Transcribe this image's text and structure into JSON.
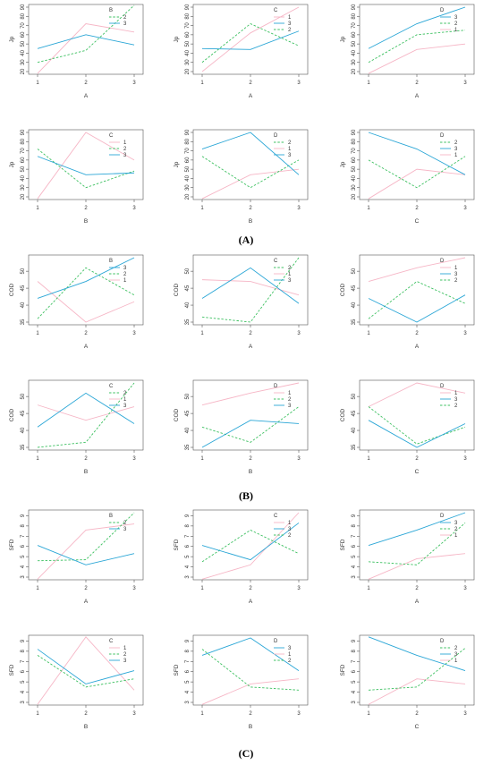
{
  "colors": {
    "level1": "#f6b6c6",
    "level2": "#3cc060",
    "level3": "#2aa6d6"
  },
  "panel_labels": [
    "(A)",
    "(B)",
    "(C)"
  ],
  "chart_data": [
    {
      "group": "A",
      "type": "line",
      "xlabel": "A",
      "ylabel": "Jp",
      "ylim": [
        20,
        90
      ],
      "yticks": [
        "20",
        "30",
        "40",
        "50",
        "60",
        "70",
        "80",
        "90"
      ],
      "xticks": [
        "1",
        "2",
        "3"
      ],
      "legend_title": "B",
      "legend_items": [
        "2",
        "3"
      ],
      "series": [
        {
          "level": "1",
          "values": [
            18,
            72,
            63
          ]
        },
        {
          "level": "2",
          "values": [
            30,
            43,
            92
          ]
        },
        {
          "level": "3",
          "values": [
            45,
            60,
            49
          ]
        }
      ]
    },
    {
      "group": "A",
      "type": "line",
      "xlabel": "A",
      "ylabel": "Jp",
      "ylim": [
        20,
        90
      ],
      "yticks": [
        "20",
        "30",
        "40",
        "50",
        "60",
        "70",
        "80",
        "90"
      ],
      "xticks": [
        "1",
        "2",
        "3"
      ],
      "legend_title": "C",
      "legend_items": [
        "1",
        "3",
        "2"
      ],
      "series": [
        {
          "level": "1",
          "values": [
            20,
            62,
            90
          ]
        },
        {
          "level": "2",
          "values": [
            30,
            72,
            48
          ]
        },
        {
          "level": "3",
          "values": [
            45,
            44,
            64
          ]
        }
      ]
    },
    {
      "group": "A",
      "type": "line",
      "xlabel": "A",
      "ylabel": "Jp",
      "ylim": [
        20,
        90
      ],
      "yticks": [
        "20",
        "30",
        "40",
        "50",
        "60",
        "70",
        "80",
        "90"
      ],
      "xticks": [
        "1",
        "2",
        "3"
      ],
      "legend_title": "D",
      "legend_items": [
        "3",
        "2",
        "1"
      ],
      "series": [
        {
          "level": "1",
          "values": [
            18,
            44,
            50
          ]
        },
        {
          "level": "2",
          "values": [
            30,
            60,
            65
          ]
        },
        {
          "level": "3",
          "values": [
            45,
            72,
            90
          ]
        }
      ]
    },
    {
      "group": "A",
      "type": "line",
      "xlabel": "B",
      "ylabel": "Jp",
      "ylim": [
        20,
        90
      ],
      "yticks": [
        "20",
        "30",
        "40",
        "50",
        "60",
        "70",
        "80",
        "90"
      ],
      "xticks": [
        "1",
        "2",
        "3"
      ],
      "legend_title": "C",
      "legend_items": [
        "1",
        "2",
        "3"
      ],
      "series": [
        {
          "level": "1",
          "values": [
            18,
            90,
            60
          ]
        },
        {
          "level": "2",
          "values": [
            72,
            30,
            48
          ]
        },
        {
          "level": "3",
          "values": [
            64,
            44,
            46
          ]
        }
      ]
    },
    {
      "group": "A",
      "type": "line",
      "xlabel": "B",
      "ylabel": "Jp",
      "ylim": [
        20,
        90
      ],
      "yticks": [
        "20",
        "30",
        "40",
        "50",
        "60",
        "70",
        "80",
        "90"
      ],
      "xticks": [
        "1",
        "2",
        "3"
      ],
      "legend_title": "D",
      "legend_items": [
        "2",
        "1",
        "3"
      ],
      "series": [
        {
          "level": "1",
          "values": [
            18,
            44,
            50
          ]
        },
        {
          "level": "2",
          "values": [
            64,
            30,
            60
          ]
        },
        {
          "level": "3",
          "values": [
            72,
            90,
            44
          ]
        }
      ]
    },
    {
      "group": "A",
      "type": "line",
      "xlabel": "C",
      "ylabel": "Jp",
      "ylim": [
        20,
        90
      ],
      "yticks": [
        "20",
        "30",
        "40",
        "50",
        "60",
        "70",
        "80",
        "90"
      ],
      "xticks": [
        "1",
        "2",
        "3"
      ],
      "legend_title": "D",
      "legend_items": [
        "2",
        "3",
        "1"
      ],
      "series": [
        {
          "level": "1",
          "values": [
            18,
            50,
            44
          ]
        },
        {
          "level": "2",
          "values": [
            60,
            30,
            64
          ]
        },
        {
          "level": "3",
          "values": [
            90,
            72,
            44
          ]
        }
      ]
    },
    {
      "group": "B",
      "type": "line",
      "xlabel": "A",
      "ylabel": "COD",
      "ylim": [
        35,
        54
      ],
      "yticks": [
        "35",
        "40",
        "45",
        "50"
      ],
      "xticks": [
        "1",
        "2",
        "3"
      ],
      "legend_title": "B",
      "legend_items": [
        "3",
        "2",
        "1"
      ],
      "series": [
        {
          "level": "1",
          "values": [
            47,
            35,
            41
          ]
        },
        {
          "level": "2",
          "values": [
            36,
            51,
            43
          ]
        },
        {
          "level": "3",
          "values": [
            42,
            47,
            54
          ]
        }
      ]
    },
    {
      "group": "B",
      "type": "line",
      "xlabel": "A",
      "ylabel": "COD",
      "ylim": [
        35,
        54
      ],
      "yticks": [
        "35",
        "40",
        "45",
        "50"
      ],
      "xticks": [
        "1",
        "2",
        "3"
      ],
      "legend_title": "C",
      "legend_items": [
        "2",
        "1",
        "3"
      ],
      "series": [
        {
          "level": "1",
          "values": [
            47.5,
            47,
            43
          ]
        },
        {
          "level": "2",
          "values": [
            36.5,
            35,
            54
          ]
        },
        {
          "level": "3",
          "values": [
            42,
            51,
            40.5
          ]
        }
      ]
    },
    {
      "group": "B",
      "type": "line",
      "xlabel": "A",
      "ylabel": "COD",
      "ylim": [
        35,
        54
      ],
      "yticks": [
        "35",
        "40",
        "45",
        "50"
      ],
      "xticks": [
        "1",
        "2",
        "3"
      ],
      "legend_title": "D",
      "legend_items": [
        "1",
        "3",
        "2"
      ],
      "series": [
        {
          "level": "1",
          "values": [
            47,
            51,
            54
          ]
        },
        {
          "level": "2",
          "values": [
            36,
            47,
            40.5
          ]
        },
        {
          "level": "3",
          "values": [
            42,
            35,
            43
          ]
        }
      ]
    },
    {
      "group": "B",
      "type": "line",
      "xlabel": "B",
      "ylabel": "COD",
      "ylim": [
        35,
        54
      ],
      "yticks": [
        "35",
        "40",
        "45",
        "50"
      ],
      "xticks": [
        "1",
        "2",
        "3"
      ],
      "legend_title": "C",
      "legend_items": [
        "2",
        "1",
        "3"
      ],
      "series": [
        {
          "level": "1",
          "values": [
            47.5,
            43,
            47
          ]
        },
        {
          "level": "2",
          "values": [
            35,
            36.5,
            54
          ]
        },
        {
          "level": "3",
          "values": [
            41,
            51,
            42
          ]
        }
      ]
    },
    {
      "group": "B",
      "type": "line",
      "xlabel": "B",
      "ylabel": "COD",
      "ylim": [
        35,
        54
      ],
      "yticks": [
        "35",
        "40",
        "45",
        "50"
      ],
      "xticks": [
        "1",
        "2",
        "3"
      ],
      "legend_title": "D",
      "legend_items": [
        "1",
        "2",
        "3"
      ],
      "series": [
        {
          "level": "1",
          "values": [
            47.5,
            51,
            54
          ]
        },
        {
          "level": "2",
          "values": [
            41,
            36.5,
            47
          ]
        },
        {
          "level": "3",
          "values": [
            35,
            43,
            42
          ]
        }
      ]
    },
    {
      "group": "B",
      "type": "line",
      "xlabel": "C",
      "ylabel": "COD",
      "ylim": [
        35,
        54
      ],
      "yticks": [
        "35",
        "40",
        "45",
        "50"
      ],
      "xticks": [
        "1",
        "2",
        "3"
      ],
      "legend_title": "D",
      "legend_items": [
        "1",
        "3",
        "2"
      ],
      "series": [
        {
          "level": "1",
          "values": [
            47,
            54,
            51
          ]
        },
        {
          "level": "2",
          "values": [
            47,
            36,
            41
          ]
        },
        {
          "level": "3",
          "values": [
            43,
            35,
            42
          ]
        }
      ]
    },
    {
      "group": "C",
      "type": "line",
      "xlabel": "A",
      "ylabel": "SFD",
      "ylim": [
        3,
        9.3
      ],
      "yticks": [
        "3",
        "4",
        "5",
        "6",
        "7",
        "8",
        "9"
      ],
      "xticks": [
        "1",
        "2",
        "3"
      ],
      "legend_title": "B",
      "legend_items": [
        "2",
        "3"
      ],
      "series": [
        {
          "level": "1",
          "values": [
            2.8,
            7.6,
            8.2
          ]
        },
        {
          "level": "2",
          "values": [
            4.6,
            4.7,
            9.3
          ]
        },
        {
          "level": "3",
          "values": [
            6.1,
            4.2,
            5.3
          ]
        }
      ]
    },
    {
      "group": "C",
      "type": "line",
      "xlabel": "A",
      "ylabel": "SFD",
      "ylim": [
        3,
        9.3
      ],
      "yticks": [
        "3",
        "4",
        "5",
        "6",
        "7",
        "8",
        "9"
      ],
      "xticks": [
        "1",
        "2",
        "3"
      ],
      "legend_title": "C",
      "legend_items": [
        "1",
        "3",
        "2"
      ],
      "series": [
        {
          "level": "1",
          "values": [
            2.8,
            4.2,
            9.3
          ]
        },
        {
          "level": "2",
          "values": [
            4.5,
            7.6,
            5.3
          ]
        },
        {
          "level": "3",
          "values": [
            6.1,
            4.7,
            8.3
          ]
        }
      ]
    },
    {
      "group": "C",
      "type": "line",
      "xlabel": "A",
      "ylabel": "SFD",
      "ylim": [
        3,
        9.3
      ],
      "yticks": [
        "3",
        "4",
        "5",
        "6",
        "7",
        "8",
        "9"
      ],
      "xticks": [
        "1",
        "2",
        "3"
      ],
      "legend_title": "D",
      "legend_items": [
        "3",
        "2",
        "1"
      ],
      "series": [
        {
          "level": "1",
          "values": [
            2.8,
            4.8,
            5.3
          ]
        },
        {
          "level": "2",
          "values": [
            4.5,
            4.2,
            8.3
          ]
        },
        {
          "level": "3",
          "values": [
            6.1,
            7.6,
            9.3
          ]
        }
      ]
    },
    {
      "group": "C",
      "type": "line",
      "xlabel": "B",
      "ylabel": "SFD",
      "ylim": [
        3,
        9.3
      ],
      "yticks": [
        "3",
        "4",
        "5",
        "6",
        "7",
        "8",
        "9"
      ],
      "xticks": [
        "1",
        "2",
        "3"
      ],
      "legend_title": "C",
      "legend_items": [
        "1",
        "2",
        "3"
      ],
      "series": [
        {
          "level": "1",
          "values": [
            2.8,
            9.4,
            4.2
          ]
        },
        {
          "level": "2",
          "values": [
            7.6,
            4.5,
            5.3
          ]
        },
        {
          "level": "3",
          "values": [
            8.2,
            4.8,
            6.1
          ]
        }
      ]
    },
    {
      "group": "C",
      "type": "line",
      "xlabel": "B",
      "ylabel": "SFD",
      "ylim": [
        3,
        9.3
      ],
      "yticks": [
        "3",
        "4",
        "5",
        "6",
        "7",
        "8",
        "9"
      ],
      "xticks": [
        "1",
        "2",
        "3"
      ],
      "legend_title": "D",
      "legend_items": [
        "3",
        "1",
        "2"
      ],
      "series": [
        {
          "level": "1",
          "values": [
            2.8,
            4.8,
            5.3
          ]
        },
        {
          "level": "2",
          "values": [
            8.2,
            4.5,
            4.2
          ]
        },
        {
          "level": "3",
          "values": [
            7.6,
            9.3,
            6.1
          ]
        }
      ]
    },
    {
      "group": "C",
      "type": "line",
      "xlabel": "C",
      "ylabel": "SFD",
      "ylim": [
        3,
        9.3
      ],
      "yticks": [
        "3",
        "4",
        "5",
        "6",
        "7",
        "8",
        "9"
      ],
      "xticks": [
        "1",
        "2",
        "3"
      ],
      "legend_title": "D",
      "legend_items": [
        "2",
        "3",
        "1"
      ],
      "series": [
        {
          "level": "1",
          "values": [
            2.8,
            5.3,
            4.8
          ]
        },
        {
          "level": "2",
          "values": [
            4.2,
            4.5,
            8.3
          ]
        },
        {
          "level": "3",
          "values": [
            9.4,
            7.6,
            6.1
          ]
        }
      ]
    }
  ]
}
